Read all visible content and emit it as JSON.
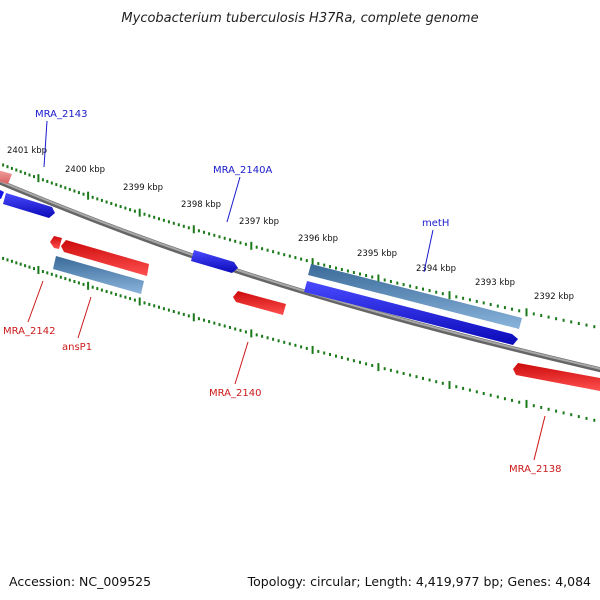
{
  "title": "Mycobacterium tuberculosis H37Ra, complete genome",
  "footer": {
    "accession": "Accession: NC_009525",
    "topology": "Topology: circular; Length: 4,419,977 bp; Genes: 4,084"
  },
  "colors": {
    "backbone": "#808080",
    "ticks": "#1a7a1a",
    "gene_blue": "#1414e6",
    "gene_steel": "#4a7fb0",
    "gene_red": "#e61414",
    "gene_pink": "#e88080",
    "label_blue": "#1a1acc",
    "label_red": "#cc1a1a"
  },
  "ruler_labels": [
    "2401 kbp",
    "2400 kbp",
    "2399 kbp",
    "2398 kbp",
    "2397 kbp",
    "2396 kbp",
    "2395 kbp",
    "2394 kbp",
    "2393 kbp",
    "2392 kbp"
  ],
  "genes": [
    {
      "name": "MRA_2143",
      "strand": "forward",
      "color": "blue"
    },
    {
      "name": "MRA_2140A",
      "strand": "forward",
      "color": "blue"
    },
    {
      "name": "metH",
      "strand": "forward",
      "color": "steel"
    },
    {
      "name": "MRA_2142",
      "strand": "reverse",
      "color": "red"
    },
    {
      "name": "ansP1",
      "strand": "reverse",
      "color": "steel"
    },
    {
      "name": "MRA_2140",
      "strand": "reverse",
      "color": "red"
    },
    {
      "name": "MRA_2138",
      "strand": "reverse",
      "color": "red"
    }
  ],
  "labels": {
    "mra2143": "MRA_2143",
    "mra2140a": "MRA_2140A",
    "meth": "metH",
    "mra2142": "MRA_2142",
    "ansp1": "ansP1",
    "mra2140": "MRA_2140",
    "mra2138": "MRA_2138"
  }
}
